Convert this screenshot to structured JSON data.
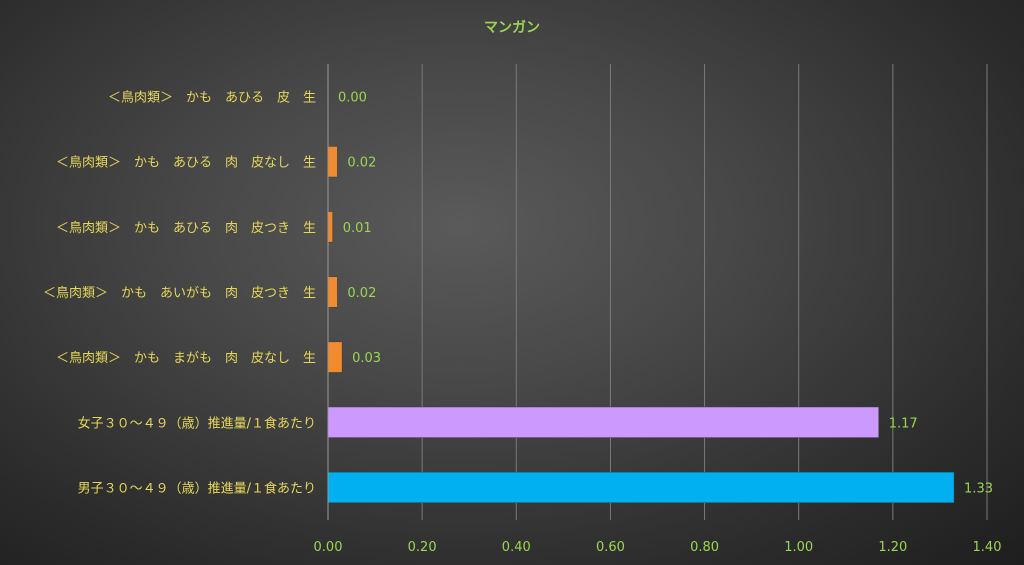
{
  "chart_data": {
    "type": "bar",
    "orientation": "horizontal",
    "title": "マンガン",
    "categories": [
      "＜鳥肉類＞　かも　あひる　皮　生",
      "＜鳥肉類＞　かも　あひる　肉　皮なし　生",
      "＜鳥肉類＞　かも　あひる　肉　皮つき　生",
      "＜鳥肉類＞　かも　あいがも　肉　皮つき　生",
      "＜鳥肉類＞　かも　まがも　肉　皮なし　生",
      "女子３０～４９（歳）推進量/１食あたり",
      "男子３０～４９（歳）推進量/１食あたり"
    ],
    "values": [
      0.0,
      0.02,
      0.01,
      0.02,
      0.03,
      1.17,
      1.33
    ],
    "data_labels": [
      "0.00",
      "0.02",
      "0.01",
      "0.02",
      "0.03",
      "1.17",
      "1.33"
    ],
    "bar_colors": [
      "#f28a30",
      "#f28a30",
      "#f28a30",
      "#f28a30",
      "#f28a30",
      "#cc99ff",
      "#00b0f0"
    ],
    "xlim": [
      0,
      1.4
    ],
    "xticks": [
      0,
      0.2,
      0.4,
      0.6,
      0.8,
      1.0,
      1.2,
      1.4
    ],
    "xtick_labels": [
      "0.00",
      "0.20",
      "0.40",
      "0.60",
      "0.80",
      "1.00",
      "1.20",
      "1.40"
    ],
    "xlabel": "",
    "ylabel": "",
    "grid": "vertical",
    "legend": "none"
  }
}
